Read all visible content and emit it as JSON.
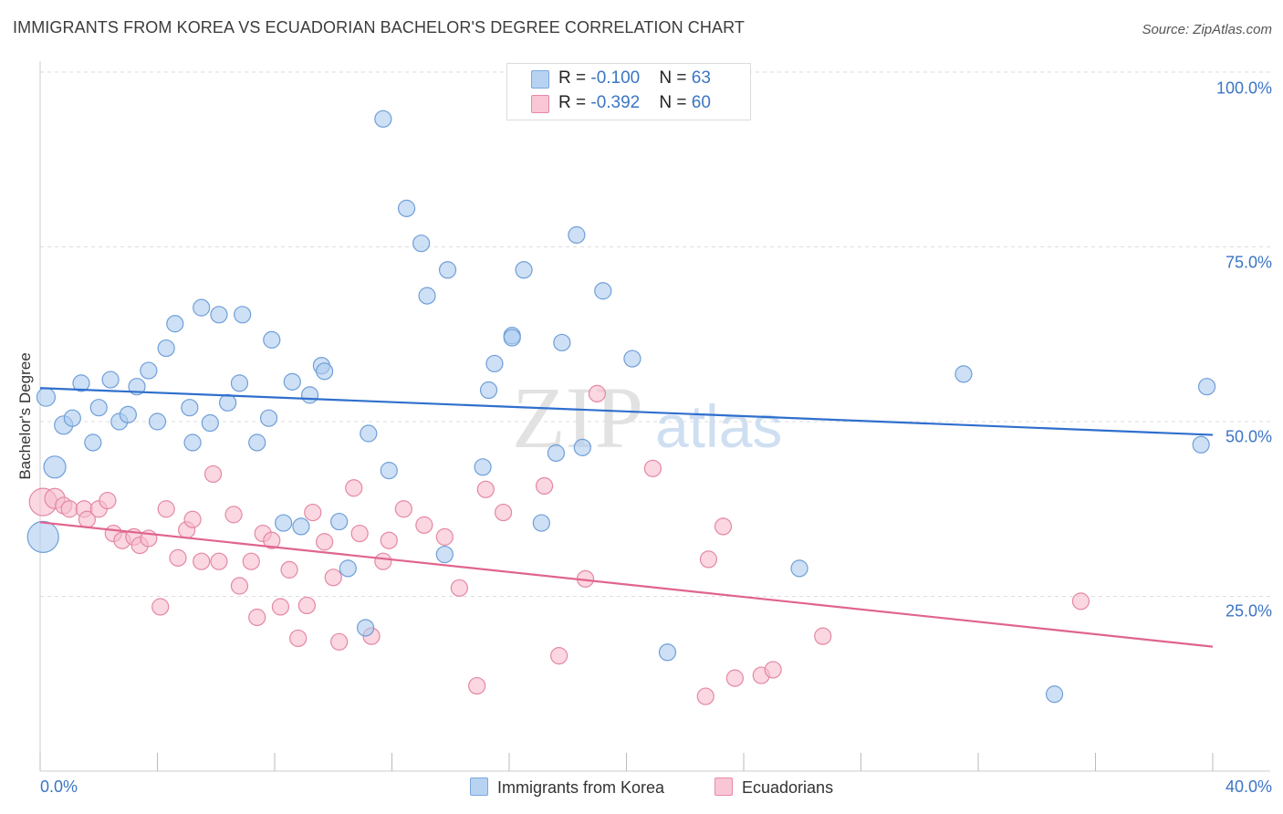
{
  "title": "IMMIGRANTS FROM KOREA VS ECUADORIAN BACHELOR'S DEGREE CORRELATION CHART",
  "source": "Source: ZipAtlas.com",
  "watermark": {
    "zip": "ZIP",
    "atlas": "atlas"
  },
  "stats": [
    {
      "r_label": "R = ",
      "r_value": "-0.100",
      "n_label": "N = ",
      "n_value": "63",
      "color": "#b8d3f2",
      "border": "#7aa6dd"
    },
    {
      "r_label": "R = ",
      "r_value": "-0.392",
      "n_label": "N = ",
      "n_value": "60",
      "color": "#f9c6d5",
      "border": "#e68aa6"
    }
  ],
  "legend": [
    {
      "label": "Immigrants from Korea",
      "color": "#b8d3f2",
      "border": "#7aa6dd"
    },
    {
      "label": "Ecuadorians",
      "color": "#f9c6d5",
      "border": "#e68aa6"
    }
  ],
  "chart_data": {
    "type": "scatter",
    "title": "IMMIGRANTS FROM KOREA VS ECUADORIAN BACHELOR'S DEGREE CORRELATION CHART",
    "xlabel": "",
    "ylabel": "Bachelor's Degree",
    "xlim": [
      0,
      40
    ],
    "ylim": [
      0,
      100
    ],
    "x_tick_labels": [
      "0.0%",
      "40.0%"
    ],
    "y_ticks": [
      25,
      50,
      75,
      100
    ],
    "y_tick_labels": [
      "25.0%",
      "50.0%",
      "75.0%",
      "100.0%"
    ],
    "grid": true,
    "colors": {
      "korea_fill": "#aecbef",
      "korea_stroke": "#6f9fd8",
      "korea_line": "#2f6fcd",
      "ecu_fill": "#f7bccd",
      "ecu_stroke": "#e587a3",
      "ecu_line": "#e0648e"
    },
    "series": [
      {
        "name": "Immigrants from Korea",
        "trend": {
          "x": [
            0,
            40
          ],
          "y": [
            54.8,
            48.1
          ]
        },
        "points": [
          [
            0.5,
            43.5
          ],
          [
            0.8,
            49.5
          ],
          [
            1.1,
            50.5
          ],
          [
            1.4,
            55.5
          ],
          [
            1.8,
            47
          ],
          [
            2.0,
            52
          ],
          [
            2.4,
            56
          ],
          [
            2.7,
            50
          ],
          [
            3.0,
            51
          ],
          [
            3.3,
            55
          ],
          [
            3.7,
            57.3
          ],
          [
            4.0,
            50
          ],
          [
            4.3,
            60.5
          ],
          [
            4.6,
            64
          ],
          [
            5.1,
            52
          ],
          [
            5.2,
            47
          ],
          [
            5.5,
            66.3
          ],
          [
            5.8,
            49.8
          ],
          [
            6.1,
            65.3
          ],
          [
            6.4,
            52.7
          ],
          [
            6.8,
            55.5
          ],
          [
            6.9,
            65.3
          ],
          [
            7.4,
            47
          ],
          [
            7.8,
            50.5
          ],
          [
            7.9,
            61.7
          ],
          [
            8.3,
            35.5
          ],
          [
            8.6,
            55.7
          ],
          [
            8.9,
            35
          ],
          [
            9.2,
            53.8
          ],
          [
            9.6,
            58
          ],
          [
            9.7,
            57.2
          ],
          [
            10.2,
            35.7
          ],
          [
            10.5,
            29
          ],
          [
            11.1,
            20.5
          ],
          [
            11.2,
            48.3
          ],
          [
            11.7,
            93.3
          ],
          [
            11.9,
            43
          ],
          [
            12.5,
            80.5
          ],
          [
            13.0,
            75.5
          ],
          [
            13.2,
            68
          ],
          [
            13.8,
            31
          ],
          [
            13.9,
            71.7
          ],
          [
            15.1,
            43.5
          ],
          [
            15.3,
            54.5
          ],
          [
            15.5,
            58.3
          ],
          [
            16.1,
            62.3
          ],
          [
            16.1,
            62
          ],
          [
            16.5,
            71.7
          ],
          [
            17.1,
            35.5
          ],
          [
            17.6,
            45.5
          ],
          [
            17.8,
            61.3
          ],
          [
            18.3,
            76.7
          ],
          [
            18.5,
            46.3
          ],
          [
            19.2,
            68.7
          ],
          [
            20.2,
            59
          ],
          [
            21.4,
            17
          ],
          [
            25.9,
            29
          ],
          [
            31.5,
            56.8
          ],
          [
            34.6,
            11
          ],
          [
            39.6,
            46.7
          ],
          [
            39.8,
            55
          ],
          [
            0.1,
            33.5
          ],
          [
            0.2,
            53.5
          ]
        ],
        "sizes": [
          24,
          20,
          18,
          18,
          18,
          18,
          18,
          18,
          18,
          18,
          18,
          18,
          18,
          18,
          18,
          18,
          18,
          18,
          18,
          18,
          18,
          18,
          18,
          18,
          18,
          18,
          18,
          18,
          18,
          18,
          18,
          18,
          18,
          18,
          18,
          18,
          18,
          18,
          18,
          18,
          18,
          18,
          18,
          18,
          18,
          18,
          18,
          18,
          18,
          18,
          18,
          18,
          18,
          18,
          18,
          18,
          18,
          18,
          18,
          18,
          18,
          34,
          20
        ]
      },
      {
        "name": "Ecuadorians",
        "trend": {
          "x": [
            0,
            40
          ],
          "y": [
            35.6,
            17.8
          ]
        },
        "points": [
          [
            0.1,
            38.5
          ],
          [
            0.5,
            39
          ],
          [
            0.8,
            38
          ],
          [
            1.0,
            37.5
          ],
          [
            1.5,
            37.5
          ],
          [
            1.6,
            36
          ],
          [
            2.0,
            37.5
          ],
          [
            2.3,
            38.7
          ],
          [
            2.5,
            34
          ],
          [
            2.8,
            33
          ],
          [
            3.2,
            33.5
          ],
          [
            3.4,
            32.3
          ],
          [
            3.7,
            33.3
          ],
          [
            4.1,
            23.5
          ],
          [
            4.3,
            37.5
          ],
          [
            4.7,
            30.5
          ],
          [
            5.0,
            34.5
          ],
          [
            5.2,
            36
          ],
          [
            5.5,
            30
          ],
          [
            5.9,
            42.5
          ],
          [
            6.1,
            30
          ],
          [
            6.6,
            36.7
          ],
          [
            6.8,
            26.5
          ],
          [
            7.2,
            30
          ],
          [
            7.4,
            22
          ],
          [
            7.6,
            34
          ],
          [
            7.9,
            33
          ],
          [
            8.2,
            23.5
          ],
          [
            8.5,
            28.8
          ],
          [
            8.8,
            19
          ],
          [
            9.1,
            23.7
          ],
          [
            9.3,
            37
          ],
          [
            9.7,
            32.8
          ],
          [
            10.0,
            27.7
          ],
          [
            10.2,
            18.5
          ],
          [
            10.7,
            40.5
          ],
          [
            10.9,
            34
          ],
          [
            11.3,
            19.3
          ],
          [
            11.7,
            30
          ],
          [
            11.9,
            33
          ],
          [
            12.4,
            37.5
          ],
          [
            13.1,
            35.2
          ],
          [
            13.8,
            33.5
          ],
          [
            14.3,
            26.2
          ],
          [
            14.9,
            12.2
          ],
          [
            15.2,
            40.3
          ],
          [
            15.8,
            37
          ],
          [
            17.2,
            40.8
          ],
          [
            17.7,
            16.5
          ],
          [
            18.6,
            27.5
          ],
          [
            19.0,
            54
          ],
          [
            20.9,
            43.3
          ],
          [
            22.7,
            10.7
          ],
          [
            22.8,
            30.3
          ],
          [
            23.3,
            35
          ],
          [
            23.7,
            13.3
          ],
          [
            24.6,
            13.7
          ],
          [
            25.0,
            14.5
          ],
          [
            26.7,
            19.3
          ],
          [
            35.5,
            24.3
          ]
        ],
        "sizes": [
          30,
          22,
          18,
          18,
          18,
          18,
          18,
          18,
          18,
          18,
          18,
          18,
          18,
          18,
          18,
          18,
          18,
          18,
          18,
          18,
          18,
          18,
          18,
          18,
          18,
          18,
          18,
          18,
          18,
          18,
          18,
          18,
          18,
          18,
          18,
          18,
          18,
          18,
          18,
          18,
          18,
          18,
          18,
          18,
          18,
          18,
          18,
          18,
          18,
          18,
          18,
          18,
          18,
          18,
          18,
          18,
          18,
          18,
          18,
          18
        ]
      }
    ]
  }
}
